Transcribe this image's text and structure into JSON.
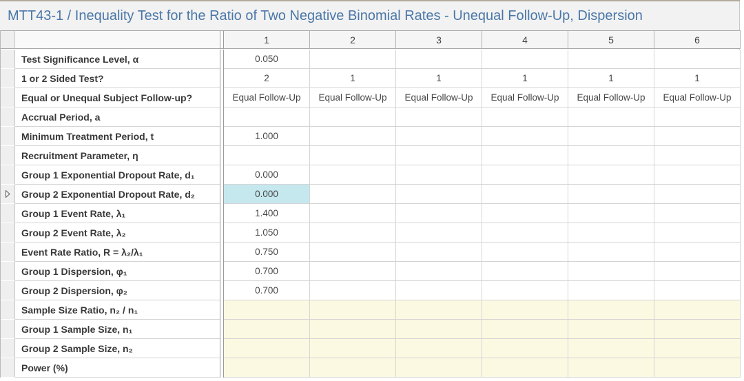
{
  "title": "MTT43-1 / Inequality Test for the Ratio of Two Negative Binomial Rates - Unequal Follow-Up, Dispersion",
  "colors": {
    "title_text": "#4a77a8",
    "titlebar_bg": "#f2f2f2",
    "selected_cell_bg": "#c5e8ef",
    "output_cell_bg": "#fbf9e1",
    "header_bg": "#f5f5f5"
  },
  "grid": {
    "column_headers": [
      "1",
      "2",
      "3",
      "4",
      "5",
      "6"
    ],
    "selection": {
      "row_index": 7,
      "col_index": 0,
      "indicator_icon": "row-pointer-triangle"
    },
    "rows": [
      {
        "label": "Test Significance Level, α",
        "values": [
          "0.050",
          "",
          "",
          "",
          "",
          ""
        ],
        "output": false
      },
      {
        "label": "1 or 2 Sided Test?",
        "values": [
          "2",
          "1",
          "1",
          "1",
          "1",
          "1"
        ],
        "output": false
      },
      {
        "label": "Equal or Unequal Subject Follow-up?",
        "values": [
          "Equal Follow-Up",
          "Equal Follow-Up",
          "Equal Follow-Up",
          "Equal Follow-Up",
          "Equal Follow-Up",
          "Equal Follow-Up"
        ],
        "output": false
      },
      {
        "label": "Accrual Period, a",
        "values": [
          "",
          "",
          "",
          "",
          "",
          ""
        ],
        "output": false
      },
      {
        "label": "Minimum Treatment Period, t",
        "values": [
          "1.000",
          "",
          "",
          "",
          "",
          ""
        ],
        "output": false
      },
      {
        "label": "Recruitment Parameter, η",
        "values": [
          "",
          "",
          "",
          "",
          "",
          ""
        ],
        "output": false
      },
      {
        "label": "Group 1 Exponential Dropout Rate, d₁",
        "values": [
          "0.000",
          "",
          "",
          "",
          "",
          ""
        ],
        "output": false
      },
      {
        "label": "Group 2 Exponential Dropout Rate, d₂",
        "values": [
          "0.000",
          "",
          "",
          "",
          "",
          ""
        ],
        "output": false
      },
      {
        "label": "Group 1 Event Rate, λ₁",
        "values": [
          "1.400",
          "",
          "",
          "",
          "",
          ""
        ],
        "output": false
      },
      {
        "label": "Group 2 Event Rate, λ₂",
        "values": [
          "1.050",
          "",
          "",
          "",
          "",
          ""
        ],
        "output": false
      },
      {
        "label": "Event Rate Ratio, R = λ₂/λ₁",
        "values": [
          "0.750",
          "",
          "",
          "",
          "",
          ""
        ],
        "output": false
      },
      {
        "label": "Group 1 Dispersion, φ₁",
        "values": [
          "0.700",
          "",
          "",
          "",
          "",
          ""
        ],
        "output": false
      },
      {
        "label": "Group 2 Dispersion, φ₂",
        "values": [
          "0.700",
          "",
          "",
          "",
          "",
          ""
        ],
        "output": false
      },
      {
        "label": "Sample Size Ratio, n₂ / n₁",
        "values": [
          "",
          "",
          "",
          "",
          "",
          ""
        ],
        "output": true
      },
      {
        "label": "Group 1 Sample Size, n₁",
        "values": [
          "",
          "",
          "",
          "",
          "",
          ""
        ],
        "output": true
      },
      {
        "label": "Group 2 Sample Size, n₂",
        "values": [
          "",
          "",
          "",
          "",
          "",
          ""
        ],
        "output": true
      },
      {
        "label": "Power (%)",
        "values": [
          "",
          "",
          "",
          "",
          "",
          ""
        ],
        "output": true
      }
    ]
  }
}
